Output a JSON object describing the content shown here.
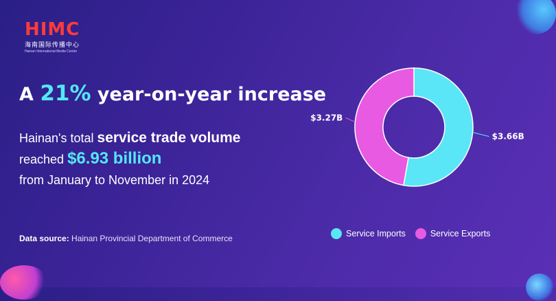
{
  "logo": {
    "mark": "HIMC",
    "cn": "海南国际传播中心",
    "en": "Hainan International Media Center"
  },
  "headline": {
    "prefix": "A",
    "percent": "21%",
    "suffix": "year-on-year increase"
  },
  "body": {
    "line1_prefix": "Hainan's total",
    "line1_strong": "service trade volume",
    "line2_prefix": "reached",
    "line2_accent": "$6.93 billion",
    "line3": "from January to November in 2024"
  },
  "source": {
    "label": "Data source:",
    "text": "Hainan Provincial Department of Commerce"
  },
  "chart_data": {
    "type": "pie",
    "donut": true,
    "labels": [
      "Service Imports",
      "Service Exports"
    ],
    "values": [
      3.66,
      3.27
    ],
    "value_labels": [
      "$3.66B",
      "$3.27B"
    ],
    "colors": [
      "#5ae6f6",
      "#e85ae2"
    ],
    "legend": "bottom"
  }
}
